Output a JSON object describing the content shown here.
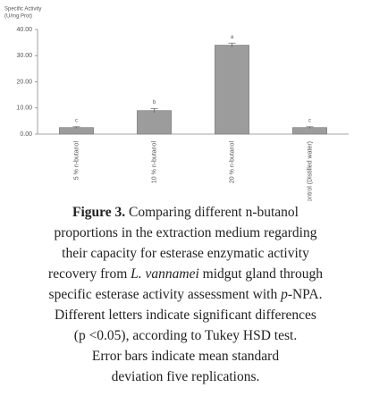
{
  "chart_data": {
    "type": "bar",
    "y_label": [
      "Specific Activity",
      "(U/mg Prot)"
    ],
    "categories": [
      "5 % n-butanol",
      "10 % n-butanol",
      "20 % n-butanol",
      "Control (Distilled water)"
    ],
    "values": [
      2.5,
      9,
      34,
      2.5
    ],
    "errors": [
      0.3,
      0.8,
      0.8,
      0.3
    ],
    "letters": [
      "c",
      "b",
      "a",
      "c"
    ],
    "color": "#9c9c9c",
    "ylim": [
      0,
      40
    ],
    "yticks": [
      {
        "value": 0,
        "label": "0.00"
      },
      {
        "value": 10,
        "label": "10.00"
      },
      {
        "value": 20,
        "label": "20.00"
      },
      {
        "value": 30,
        "label": "30.00"
      },
      {
        "value": 40,
        "label": "40.00"
      }
    ],
    "grid": false
  },
  "caption": [
    [
      {
        "text": "Figure 3.",
        "bold": true
      },
      {
        "text": " Comparing different n-butanol"
      }
    ],
    [
      {
        "text": "proportions in the extraction medium regarding"
      }
    ],
    [
      {
        "text": "their capacity for esterase enzymatic activity"
      }
    ],
    [
      {
        "text": "recovery from "
      },
      {
        "text": "L. vannamei",
        "italic": true
      },
      {
        "text": " midgut gland through"
      }
    ],
    [
      {
        "text": "specific esterase activity assessment with "
      },
      {
        "text": "p",
        "italic": true
      },
      {
        "text": "-NPA."
      }
    ],
    [
      {
        "text": "Different letters indicate significant differences"
      }
    ],
    [
      {
        "text": "(p <0.05), according to Tukey HSD test."
      }
    ],
    [
      {
        "text": "Error bars indicate mean standard"
      }
    ],
    [
      {
        "text": "deviation five replications."
      }
    ]
  ]
}
